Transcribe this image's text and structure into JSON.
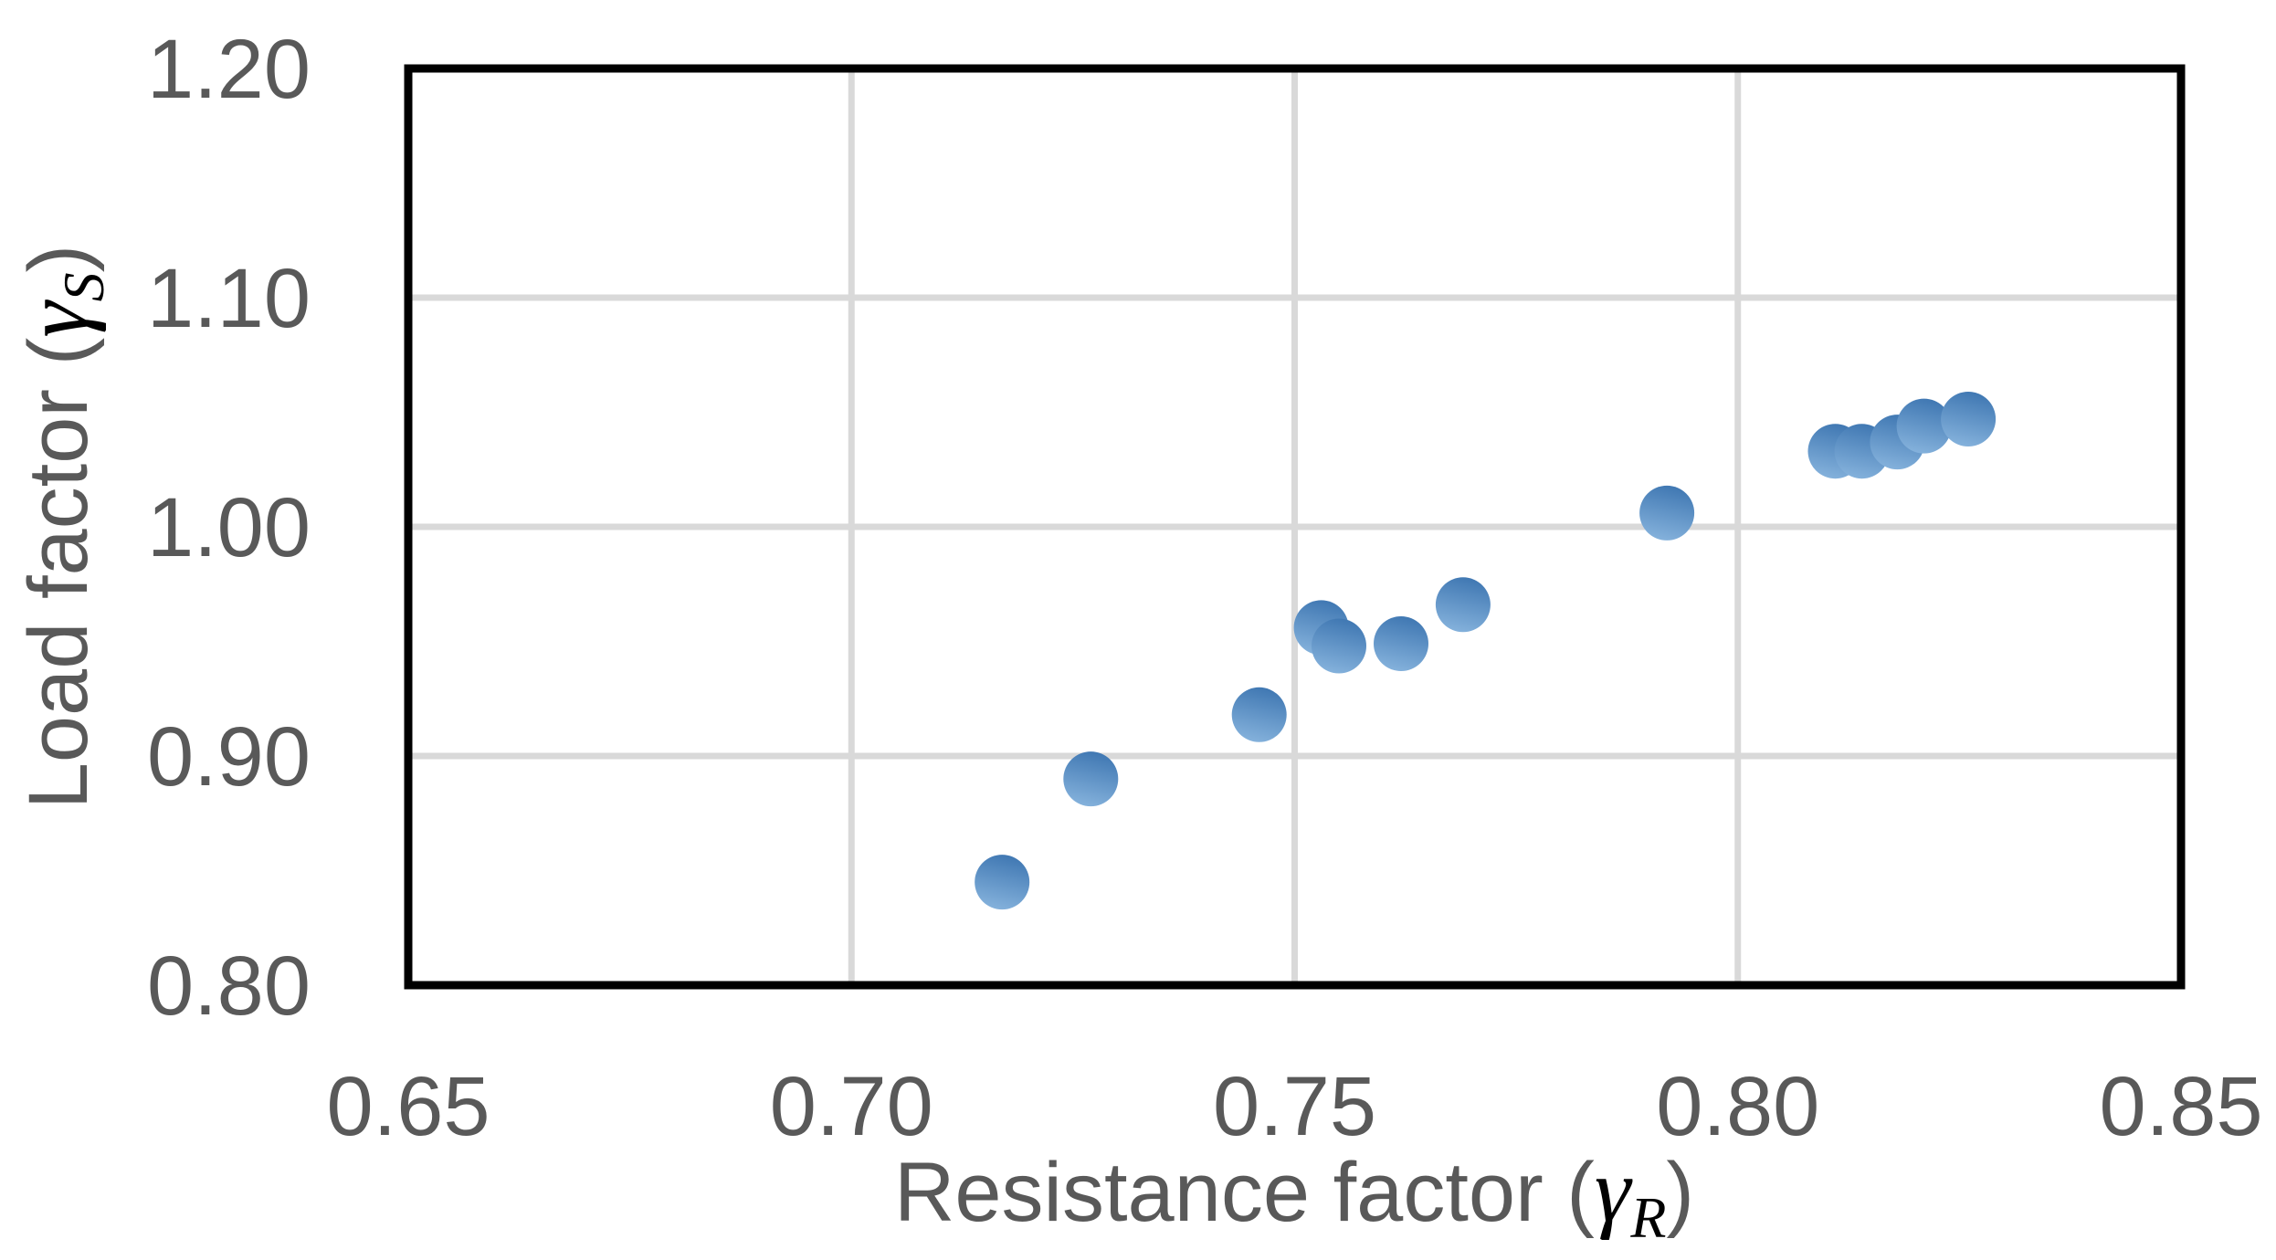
{
  "chart_data": {
    "type": "scatter",
    "title": "",
    "xlabel_prefix": "Resistance factor (",
    "xlabel_symbol": "γ",
    "xlabel_subscript": "R",
    "xlabel_suffix": ")",
    "ylabel_prefix": "Load factor (",
    "ylabel_symbol": "γ",
    "ylabel_subscript": "S",
    "ylabel_suffix": ")",
    "xlim": [
      0.65,
      0.85
    ],
    "ylim": [
      0.8,
      1.2
    ],
    "x_ticks": [
      "0.65",
      "0.70",
      "0.75",
      "0.80",
      "0.85"
    ],
    "y_ticks": [
      "0.80",
      "0.90",
      "1.00",
      "1.10",
      "1.20"
    ],
    "grid": true,
    "legend": "none",
    "points": [
      {
        "x": 0.717,
        "y": 0.845
      },
      {
        "x": 0.727,
        "y": 0.89
      },
      {
        "x": 0.746,
        "y": 0.918
      },
      {
        "x": 0.753,
        "y": 0.956
      },
      {
        "x": 0.755,
        "y": 0.948
      },
      {
        "x": 0.762,
        "y": 0.949
      },
      {
        "x": 0.769,
        "y": 0.966
      },
      {
        "x": 0.792,
        "y": 1.006
      },
      {
        "x": 0.811,
        "y": 1.033
      },
      {
        "x": 0.814,
        "y": 1.033
      },
      {
        "x": 0.818,
        "y": 1.037
      },
      {
        "x": 0.821,
        "y": 1.044
      },
      {
        "x": 0.826,
        "y": 1.047
      }
    ],
    "colors": {
      "marker_gradient_top": "#3F77B2",
      "marker_gradient_bottom": "#85B2DC",
      "gridline": "#D9D9D9",
      "plot_border": "#000000",
      "tick_text": "#595959",
      "axis_title_text": "#595959",
      "math_symbol_text": "#000000",
      "background": "#FFFFFF"
    }
  }
}
